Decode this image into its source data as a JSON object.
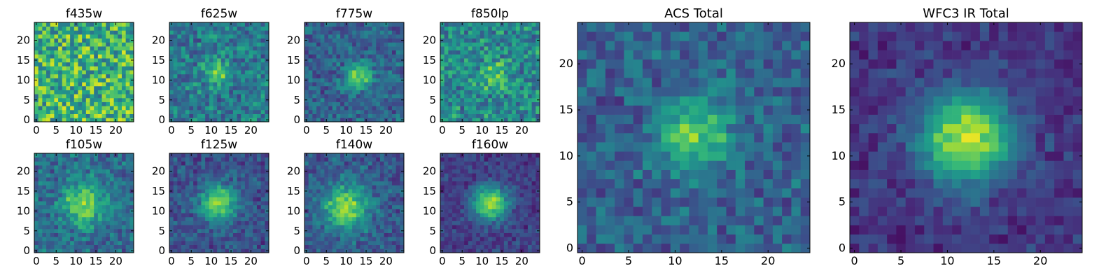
{
  "chart_data": [
    {
      "type": "heatmap",
      "title": "f435w",
      "x_ticks": [
        0,
        5,
        10,
        15,
        20
      ],
      "y_ticks": [
        0,
        5,
        10,
        15,
        20
      ],
      "xlim": [
        0,
        24
      ],
      "ylim": [
        0,
        24
      ],
      "grid": false,
      "colormap": "viridis",
      "peak": null,
      "sigma": 0,
      "strength": 0
    },
    {
      "type": "heatmap",
      "title": "f625w",
      "x_ticks": [
        0,
        5,
        10,
        15,
        20
      ],
      "y_ticks": [
        0,
        5,
        10,
        15,
        20
      ],
      "xlim": [
        0,
        24
      ],
      "ylim": [
        0,
        24
      ],
      "grid": false,
      "colormap": "viridis",
      "peak": [
        12,
        12
      ],
      "sigma": 2.2,
      "strength": 0.35
    },
    {
      "type": "heatmap",
      "title": "f775w",
      "x_ticks": [
        0,
        5,
        10,
        15,
        20
      ],
      "y_ticks": [
        0,
        5,
        10,
        15,
        20
      ],
      "xlim": [
        0,
        24
      ],
      "ylim": [
        0,
        24
      ],
      "grid": false,
      "colormap": "viridis",
      "peak": [
        13,
        11
      ],
      "sigma": 2.3,
      "strength": 0.5
    },
    {
      "type": "heatmap",
      "title": "f850lp",
      "x_ticks": [
        0,
        5,
        10,
        15,
        20
      ],
      "y_ticks": [
        0,
        5,
        10,
        15,
        20
      ],
      "xlim": [
        0,
        24
      ],
      "ylim": [
        0,
        24
      ],
      "grid": false,
      "colormap": "viridis",
      "peak": [
        13,
        11
      ],
      "sigma": 2.5,
      "strength": 0.25
    },
    {
      "type": "heatmap",
      "title": "f105w",
      "x_ticks": [
        0,
        5,
        10,
        15,
        20
      ],
      "y_ticks": [
        0,
        5,
        10,
        15,
        20
      ],
      "xlim": [
        0,
        24
      ],
      "ylim": [
        0,
        24
      ],
      "grid": false,
      "colormap": "viridis",
      "peak": [
        12,
        12
      ],
      "sigma": 4.0,
      "strength": 0.45
    },
    {
      "type": "heatmap",
      "title": "f125w",
      "x_ticks": [
        0,
        5,
        10,
        15,
        20
      ],
      "y_ticks": [
        0,
        5,
        10,
        15,
        20
      ],
      "xlim": [
        0,
        24
      ],
      "ylim": [
        0,
        24
      ],
      "grid": false,
      "colormap": "viridis",
      "peak": [
        12,
        12
      ],
      "sigma": 3.2,
      "strength": 0.6
    },
    {
      "type": "heatmap",
      "title": "f140w",
      "x_ticks": [
        0,
        5,
        10,
        15,
        20
      ],
      "y_ticks": [
        0,
        5,
        10,
        15,
        20
      ],
      "xlim": [
        0,
        24
      ],
      "ylim": [
        0,
        24
      ],
      "grid": false,
      "colormap": "viridis",
      "peak": [
        10,
        11
      ],
      "sigma": 4.0,
      "strength": 0.55
    },
    {
      "type": "heatmap",
      "title": "f160w",
      "x_ticks": [
        0,
        5,
        10,
        15,
        20
      ],
      "y_ticks": [
        0,
        5,
        10,
        15,
        20
      ],
      "xlim": [
        0,
        24
      ],
      "ylim": [
        0,
        24
      ],
      "grid": false,
      "colormap": "viridis",
      "peak": [
        12,
        12
      ],
      "sigma": 3.0,
      "strength": 0.7
    },
    {
      "type": "heatmap",
      "title": "ACS Total",
      "x_ticks": [
        0,
        5,
        10,
        15,
        20
      ],
      "y_ticks": [
        0,
        5,
        10,
        15,
        20
      ],
      "xlim": [
        0,
        24
      ],
      "ylim": [
        0,
        24
      ],
      "grid": false,
      "colormap": "viridis",
      "peak": [
        12,
        12
      ],
      "sigma": 2.6,
      "strength": 0.5
    },
    {
      "type": "heatmap",
      "title": "WFC3 IR Total",
      "x_ticks": [
        0,
        5,
        10,
        15,
        20
      ],
      "y_ticks": [
        0,
        5,
        10,
        15,
        20
      ],
      "xlim": [
        0,
        24
      ],
      "ylim": [
        0,
        24
      ],
      "grid": false,
      "colormap": "viridis",
      "peak": [
        12,
        12
      ],
      "sigma": 3.5,
      "strength": 0.75
    }
  ]
}
